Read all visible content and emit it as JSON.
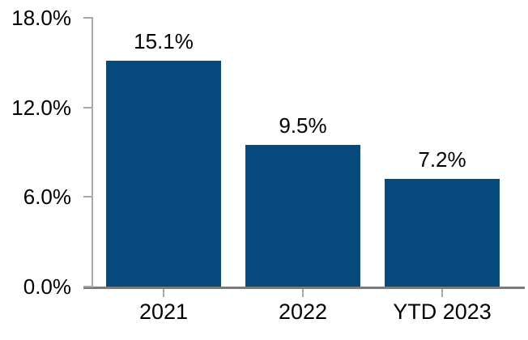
{
  "chart_data": {
    "type": "bar",
    "title": "",
    "xlabel": "",
    "ylabel": "",
    "categories": [
      "2021",
      "2022",
      "YTD 2023"
    ],
    "values": [
      15.1,
      9.5,
      7.2
    ],
    "data_labels": [
      "15.1%",
      "9.5%",
      "7.2%"
    ],
    "ylim": [
      0,
      18
    ],
    "yticks": [
      {
        "value": 18,
        "label": "18.0%"
      },
      {
        "value": 12,
        "label": "12.0%"
      },
      {
        "value": 6,
        "label": "6.0%"
      },
      {
        "value": 0,
        "label": "0.0%"
      }
    ],
    "grid": false,
    "legend": false,
    "colors": {
      "bar": "#064A7D",
      "x_axis_line": "#7A7A7A",
      "y_axis_line": "#A8A8A8",
      "tick": "#A8A8A8",
      "text": "#000000"
    }
  }
}
